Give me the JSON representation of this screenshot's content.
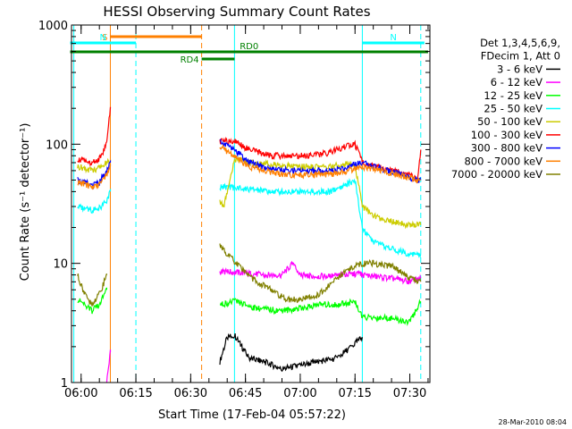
{
  "chart_data": {
    "type": "line",
    "title": "HESSI Observing Summary Count Rates",
    "xlabel": "Start Time (17-Feb-04 05:57:22)",
    "ylabel": "Count Rate (s⁻¹ detector⁻¹)",
    "xlim": [
      "05:57:22",
      "07:35:30"
    ],
    "ylim": [
      1,
      1000
    ],
    "yscale": "log",
    "x_ticks": [
      "06:00",
      "06:15",
      "06:30",
      "06:45",
      "07:00",
      "07:15",
      "07:30"
    ],
    "y_ticks": [
      "1",
      "10",
      "100",
      "1000"
    ],
    "legend": {
      "placement": "top-right outside",
      "header": [
        "Det 1,3,4,5,6,9,",
        "FDecim 1, Att 0"
      ],
      "items": [
        {
          "label": "3 - 6 keV",
          "color": "#000000"
        },
        {
          "label": "6 - 12 keV",
          "color": "#ff00ff"
        },
        {
          "label": "12 - 25 keV",
          "color": "#00ff00"
        },
        {
          "label": "25 - 50 keV",
          "color": "#00ffff"
        },
        {
          "label": "50 - 100 keV",
          "color": "#cccc00"
        },
        {
          "label": "100 - 300 keV",
          "color": "#ff0000"
        },
        {
          "label": "300 - 800 keV",
          "color": "#0000ff"
        },
        {
          "label": "800 - 7000 keV",
          "color": "#ff8000"
        },
        {
          "label": "7000 - 20000 keV",
          "color": "#808000"
        }
      ]
    },
    "flag_bars": [
      {
        "label": "S",
        "color": "#ff8000",
        "start": "06:08",
        "end": "06:33"
      },
      {
        "label": "N",
        "color": "#00ffff",
        "start": "05:57",
        "end": "06:15"
      },
      {
        "label": "N",
        "color": "#00ffff",
        "start": "07:17",
        "end": "07:34"
      },
      {
        "label": "RD0",
        "color": "#008000",
        "start": "05:57",
        "end": "07:35"
      },
      {
        "label": "RD4",
        "color": "#008000",
        "start": "06:33",
        "end": "06:42"
      }
    ],
    "vertical_markers": [
      {
        "time": "05:58",
        "color": "#00ffff",
        "style": "solid"
      },
      {
        "time": "06:08",
        "color": "#ff8000",
        "style": "solid"
      },
      {
        "time": "06:15",
        "color": "#00ffff",
        "style": "dashed"
      },
      {
        "time": "06:33",
        "color": "#ff8000",
        "style": "dashed"
      },
      {
        "time": "06:42",
        "color": "#00ffff",
        "style": "solid"
      },
      {
        "time": "07:17",
        "color": "#00ffff",
        "style": "solid"
      },
      {
        "time": "07:33",
        "color": "#00ffff",
        "style": "dashed"
      }
    ],
    "series": [
      {
        "name": "3 - 6 keV",
        "color": "#000000",
        "x": [
          "06:38",
          "06:40",
          "06:42",
          "06:44",
          "06:46",
          "06:50",
          "06:55",
          "07:00",
          "07:05",
          "07:10",
          "07:14",
          "07:17"
        ],
        "y": [
          1.5,
          2.4,
          2.5,
          2.0,
          1.6,
          1.5,
          1.3,
          1.4,
          1.5,
          1.6,
          2.0,
          2.4
        ]
      },
      {
        "name": "6 - 12 keV",
        "color": "#ff00ff",
        "x": [
          "06:07",
          "06:08",
          "06:38",
          "06:40",
          "06:45",
          "06:50",
          "06:55",
          "06:58",
          "07:00",
          "07:03",
          "07:08",
          "07:12",
          "07:16",
          "07:17",
          "07:25",
          "07:30",
          "07:33"
        ],
        "y": [
          1.0,
          1.8,
          8.5,
          8.5,
          8.3,
          8.0,
          8.0,
          10.0,
          8.0,
          7.8,
          7.8,
          8.0,
          8.2,
          8.0,
          7.5,
          7.0,
          7.5
        ]
      },
      {
        "name": "12 - 25 keV",
        "color": "#00ff00",
        "x": [
          "05:59",
          "06:01",
          "06:03",
          "06:05",
          "06:07",
          "06:38",
          "06:42",
          "06:48",
          "06:55",
          "07:00",
          "07:05",
          "07:10",
          "07:15",
          "07:17",
          "07:24",
          "07:30",
          "07:33"
        ],
        "y": [
          5.0,
          4.5,
          4.0,
          4.5,
          6.0,
          4.5,
          4.8,
          4.2,
          4.0,
          4.2,
          4.5,
          4.5,
          4.8,
          3.5,
          3.5,
          3.2,
          4.8
        ]
      },
      {
        "name": "25 - 50 keV",
        "color": "#00ffff",
        "x": [
          "05:59",
          "06:01",
          "06:03",
          "06:05",
          "06:07",
          "06:08",
          "06:38",
          "06:42",
          "06:46",
          "06:52",
          "06:58",
          "07:03",
          "07:08",
          "07:12",
          "07:15",
          "07:17",
          "07:20",
          "07:26",
          "07:30",
          "07:32",
          "07:33"
        ],
        "y": [
          30,
          29,
          28,
          29,
          34,
          40,
          44,
          43,
          42,
          40,
          40,
          40,
          40,
          45,
          50,
          20,
          15,
          13,
          12,
          12,
          12
        ]
      },
      {
        "name": "50 - 100 keV",
        "color": "#cccc00",
        "x": [
          "05:59",
          "06:01",
          "06:03",
          "06:05",
          "06:07",
          "06:08",
          "06:38",
          "06:39",
          "06:42",
          "06:46",
          "06:52",
          "06:58",
          "07:03",
          "07:08",
          "07:12",
          "07:15",
          "07:17",
          "07:20",
          "07:26",
          "07:30",
          "07:32",
          "07:33"
        ],
        "y": [
          65,
          63,
          60,
          63,
          70,
          72,
          33,
          30,
          75,
          70,
          68,
          65,
          65,
          65,
          68,
          68,
          30,
          25,
          22,
          21,
          21,
          21
        ]
      },
      {
        "name": "100 - 300 keV",
        "color": "#ff0000",
        "x": [
          "05:59",
          "06:01",
          "06:03",
          "06:05",
          "06:07",
          "06:08",
          "06:38",
          "06:42",
          "06:46",
          "06:52",
          "06:58",
          "07:03",
          "07:08",
          "07:12",
          "07:15",
          "07:17",
          "07:20",
          "07:26",
          "07:30",
          "07:32",
          "07:33"
        ],
        "y": [
          75,
          72,
          70,
          75,
          100,
          200,
          105,
          108,
          90,
          80,
          80,
          80,
          85,
          95,
          100,
          70,
          65,
          60,
          55,
          50,
          90
        ]
      },
      {
        "name": "300 - 800 keV",
        "color": "#0000ff",
        "x": [
          "05:59",
          "06:01",
          "06:03",
          "06:05",
          "06:07",
          "06:08",
          "06:38",
          "06:42",
          "06:46",
          "06:52",
          "06:58",
          "07:03",
          "07:08",
          "07:12",
          "07:15",
          "07:17",
          "07:20",
          "07:26",
          "07:30",
          "07:32",
          "07:33"
        ],
        "y": [
          50,
          48,
          45,
          48,
          60,
          70,
          105,
          90,
          70,
          62,
          60,
          60,
          60,
          62,
          68,
          70,
          65,
          58,
          52,
          50,
          50
        ]
      },
      {
        "name": "800 - 7000 keV",
        "color": "#ff8000",
        "x": [
          "05:59",
          "06:01",
          "06:03",
          "06:05",
          "06:07",
          "06:08",
          "06:38",
          "06:42",
          "06:46",
          "06:52",
          "06:58",
          "07:03",
          "07:08",
          "07:12",
          "07:15",
          "07:17",
          "07:20",
          "07:26",
          "07:30",
          "07:32",
          "07:33"
        ],
        "y": [
          48,
          46,
          44,
          46,
          55,
          65,
          95,
          80,
          65,
          58,
          55,
          55,
          56,
          58,
          63,
          65,
          62,
          56,
          52,
          50,
          50
        ]
      },
      {
        "name": "7000 - 20000 keV",
        "color": "#808000",
        "x": [
          "05:59",
          "06:01",
          "06:03",
          "06:05",
          "06:07",
          "06:38",
          "06:40",
          "06:44",
          "06:48",
          "06:52",
          "06:56",
          "07:00",
          "07:04",
          "07:08",
          "07:12",
          "07:15",
          "07:17",
          "07:20",
          "07:25",
          "07:30",
          "07:33"
        ],
        "y": [
          8,
          5.5,
          4.5,
          5.5,
          8,
          14,
          12,
          9,
          7,
          6,
          5,
          5,
          5.2,
          6.5,
          8.5,
          9.5,
          10,
          10,
          9.5,
          7.5,
          7
        ]
      }
    ]
  },
  "footer": {
    "date_stamp": "28-Mar-2010 08:04"
  }
}
